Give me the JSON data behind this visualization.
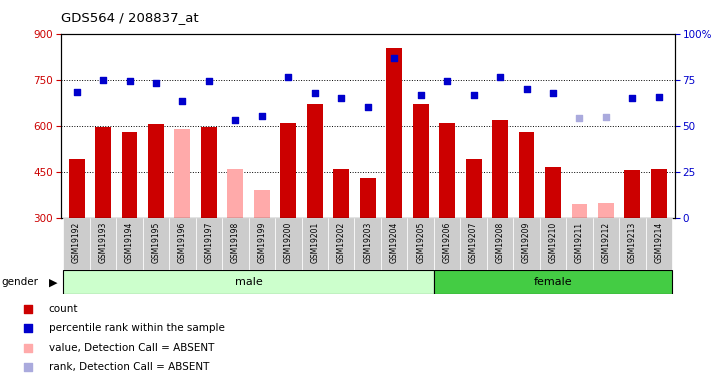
{
  "title": "GDS564 / 208837_at",
  "samples": [
    "GSM19192",
    "GSM19193",
    "GSM19194",
    "GSM19195",
    "GSM19196",
    "GSM19197",
    "GSM19198",
    "GSM19199",
    "GSM19200",
    "GSM19201",
    "GSM19202",
    "GSM19203",
    "GSM19204",
    "GSM19205",
    "GSM19206",
    "GSM19207",
    "GSM19208",
    "GSM19209",
    "GSM19210",
    "GSM19211",
    "GSM19212",
    "GSM19213",
    "GSM19214"
  ],
  "bar_values": [
    490,
    595,
    580,
    605,
    590,
    595,
    null,
    null,
    608,
    670,
    460,
    430,
    855,
    670,
    610,
    490,
    620,
    580,
    465,
    null,
    null,
    455,
    460
  ],
  "bar_absent": [
    null,
    null,
    null,
    null,
    590,
    null,
    460,
    390,
    null,
    null,
    null,
    null,
    null,
    null,
    null,
    null,
    null,
    null,
    null,
    345,
    348,
    null,
    null
  ],
  "dot_values": [
    710,
    750,
    745,
    740,
    680,
    745,
    620,
    630,
    760,
    705,
    690,
    660,
    820,
    700,
    745,
    700,
    760,
    720,
    705,
    null,
    null,
    690,
    695
  ],
  "dot_absent": [
    null,
    null,
    null,
    null,
    null,
    null,
    null,
    null,
    null,
    null,
    null,
    null,
    null,
    null,
    null,
    null,
    null,
    null,
    null,
    625,
    628,
    null,
    null
  ],
  "bar_color_present": "#cc0000",
  "bar_color_absent": "#ffaaaa",
  "dot_color_present": "#0000cc",
  "dot_color_absent": "#aaaadd",
  "gender_male_count": 14,
  "gender_female_count": 9,
  "ylim_left": [
    300,
    900
  ],
  "ylim_right": [
    0,
    100
  ],
  "yticks_left": [
    300,
    450,
    600,
    750,
    900
  ],
  "yticks_right": [
    0,
    25,
    50,
    75,
    100
  ],
  "ytick_labels_right": [
    "0",
    "25",
    "50",
    "75",
    "100%"
  ],
  "hlines": [
    450,
    600,
    750
  ],
  "male_bg": "#ccffcc",
  "female_bg": "#44cc44",
  "xticklabel_bg": "#cccccc",
  "bar_width": 0.6,
  "dot_size": 22
}
